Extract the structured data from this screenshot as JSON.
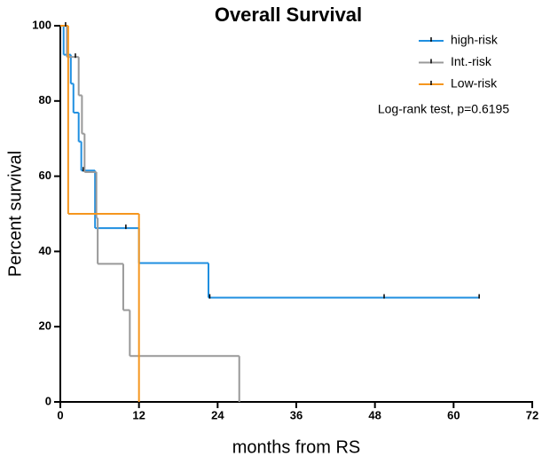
{
  "chart_data": {
    "type": "step",
    "title": "Overall Survival",
    "x_label": "months from RS",
    "y_label": "Percent survival",
    "annotation": "Log-rank test, p=0.6195",
    "xlim": [
      0,
      72
    ],
    "xticks": [
      0,
      12,
      24,
      36,
      48,
      60,
      72
    ],
    "ylim": [
      0,
      100
    ],
    "yticks": [
      0,
      20,
      40,
      60,
      80,
      100
    ],
    "series": [
      {
        "name": "high-risk",
        "color": "#1f8fe0",
        "x": [
          0,
          0.5,
          1.6,
          2.0,
          2.8,
          3.2,
          5.3,
          12.0,
          22.6
        ],
        "values": [
          100,
          92.3,
          84.6,
          76.9,
          69.2,
          61.5,
          46.2,
          36.9,
          27.7
        ],
        "censor_x": [
          3.5,
          10,
          22.8,
          49.4,
          63.9
        ],
        "censor_values": [
          61.5,
          46.2,
          27.7,
          27.7,
          27.7
        ]
      },
      {
        "name": "Int.-risk",
        "color": "#999999",
        "x": [
          0,
          1.0,
          2.8,
          3.3,
          3.7,
          5.5,
          5.7,
          9.6,
          10.6,
          27.3
        ],
        "values": [
          100,
          91.7,
          81.5,
          71.3,
          61.1,
          48.9,
          36.7,
          24.4,
          12.2,
          0
        ],
        "censor_x": [
          2.3
        ],
        "censor_values": [
          91.7
        ]
      },
      {
        "name": "Low-risk",
        "color": "#f5961e",
        "x": [
          0,
          1.2,
          12.0
        ],
        "values": [
          100,
          50,
          0
        ],
        "censor_x": [
          0.8
        ],
        "censor_values": [
          100
        ]
      }
    ]
  }
}
